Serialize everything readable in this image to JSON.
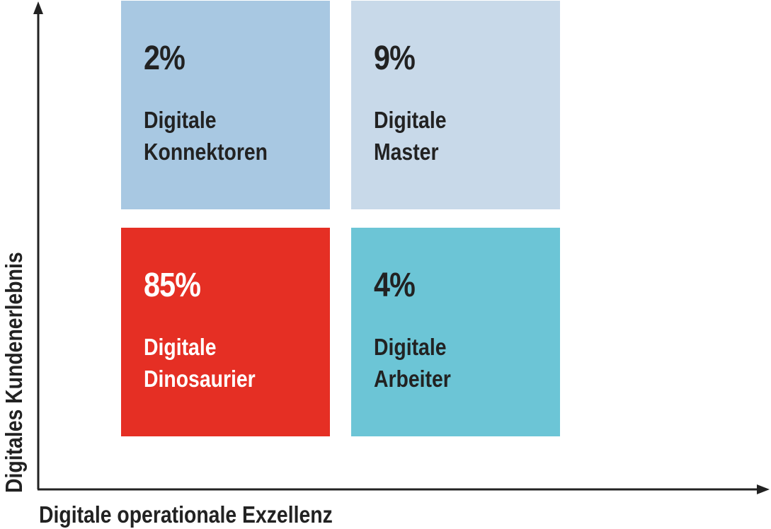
{
  "x_axis_label": "Digitale operationale Exzellenz",
  "y_axis_label": "Digitales Kundenerlebnis",
  "quadrants": {
    "top_left": {
      "percent": "2%",
      "line1": "Digitale",
      "line2": "Konnektoren",
      "color": "#a8c8e2"
    },
    "top_right": {
      "percent": "9%",
      "line1": "Digitale",
      "line2": "Master",
      "color": "#c8d9e9"
    },
    "bottom_left": {
      "percent": "85%",
      "line1": "Digitale",
      "line2": "Dinosaurier",
      "color": "#e52f24"
    },
    "bottom_right": {
      "percent": "4%",
      "line1": "Digitale",
      "line2": "Arbeiter",
      "color": "#6cc5d6"
    }
  },
  "axis_color": "#222222"
}
